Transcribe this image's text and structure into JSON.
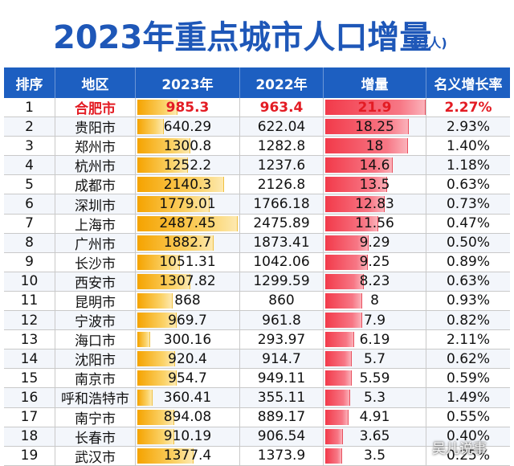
{
  "title": "2023年重点城市人口增量",
  "unit": "(万人)",
  "watermark": "吴儿说事",
  "colors": {
    "header_bg": "#1d5fc1",
    "title": "#1e57b8",
    "bar_2023": "#f5a300",
    "bar_increment": "#f23a4a",
    "highlight_text": "#e31b23"
  },
  "chart_data": {
    "type": "table",
    "columns": [
      "排序",
      "地区",
      "2023年",
      "2022年",
      "增量",
      "名义增长率"
    ],
    "rows": [
      {
        "rank": "1",
        "city": "合肥市",
        "y2023": "985.3",
        "y2022": "963.4",
        "inc": "21.9",
        "rate": "2.27%",
        "v2023": 985.3,
        "vinc": 21.9
      },
      {
        "rank": "2",
        "city": "贵阳市",
        "y2023": "640.29",
        "y2022": "622.04",
        "inc": "18.25",
        "rate": "2.93%",
        "v2023": 640.29,
        "vinc": 18.25
      },
      {
        "rank": "3",
        "city": "郑州市",
        "y2023": "1300.8",
        "y2022": "1282.8",
        "inc": "18",
        "rate": "1.40%",
        "v2023": 1300.8,
        "vinc": 18
      },
      {
        "rank": "4",
        "city": "杭州市",
        "y2023": "1252.2",
        "y2022": "1237.6",
        "inc": "14.6",
        "rate": "1.18%",
        "v2023": 1252.2,
        "vinc": 14.6
      },
      {
        "rank": "5",
        "city": "成都市",
        "y2023": "2140.3",
        "y2022": "2126.8",
        "inc": "13.5",
        "rate": "0.63%",
        "v2023": 2140.3,
        "vinc": 13.5
      },
      {
        "rank": "6",
        "city": "深圳市",
        "y2023": "1779.01",
        "y2022": "1766.18",
        "inc": "12.83",
        "rate": "0.73%",
        "v2023": 1779.01,
        "vinc": 12.83
      },
      {
        "rank": "7",
        "city": "上海市",
        "y2023": "2487.45",
        "y2022": "2475.89",
        "inc": "11.56",
        "rate": "0.47%",
        "v2023": 2487.45,
        "vinc": 11.56
      },
      {
        "rank": "8",
        "city": "广州市",
        "y2023": "1882.7",
        "y2022": "1873.41",
        "inc": "9.29",
        "rate": "0.50%",
        "v2023": 1882.7,
        "vinc": 9.29
      },
      {
        "rank": "9",
        "city": "长沙市",
        "y2023": "1051.31",
        "y2022": "1042.06",
        "inc": "9.25",
        "rate": "0.89%",
        "v2023": 1051.31,
        "vinc": 9.25
      },
      {
        "rank": "10",
        "city": "西安市",
        "y2023": "1307.82",
        "y2022": "1299.59",
        "inc": "8.23",
        "rate": "0.63%",
        "v2023": 1307.82,
        "vinc": 8.23
      },
      {
        "rank": "11",
        "city": "昆明市",
        "y2023": "868",
        "y2022": "860",
        "inc": "8",
        "rate": "0.93%",
        "v2023": 868,
        "vinc": 8
      },
      {
        "rank": "12",
        "city": "宁波市",
        "y2023": "969.7",
        "y2022": "961.8",
        "inc": "7.9",
        "rate": "0.82%",
        "v2023": 969.7,
        "vinc": 7.9
      },
      {
        "rank": "13",
        "city": "海口市",
        "y2023": "300.16",
        "y2022": "293.97",
        "inc": "6.19",
        "rate": "2.11%",
        "v2023": 300.16,
        "vinc": 6.19
      },
      {
        "rank": "14",
        "city": "沈阳市",
        "y2023": "920.4",
        "y2022": "914.7",
        "inc": "5.7",
        "rate": "0.62%",
        "v2023": 920.4,
        "vinc": 5.7
      },
      {
        "rank": "15",
        "city": "南京市",
        "y2023": "954.7",
        "y2022": "949.11",
        "inc": "5.59",
        "rate": "0.59%",
        "v2023": 954.7,
        "vinc": 5.59
      },
      {
        "rank": "16",
        "city": "呼和浩特市",
        "y2023": "360.41",
        "y2022": "355.11",
        "inc": "5.3",
        "rate": "1.49%",
        "v2023": 360.41,
        "vinc": 5.3
      },
      {
        "rank": "17",
        "city": "南宁市",
        "y2023": "894.08",
        "y2022": "889.17",
        "inc": "4.91",
        "rate": "0.55%",
        "v2023": 894.08,
        "vinc": 4.91
      },
      {
        "rank": "18",
        "city": "长春市",
        "y2023": "910.19",
        "y2022": "906.54",
        "inc": "3.65",
        "rate": "0.40%",
        "v2023": 910.19,
        "vinc": 3.65
      },
      {
        "rank": "19",
        "city": "武汉市",
        "y2023": "1377.4",
        "y2022": "1373.9",
        "inc": "3.5",
        "rate": "0.25%",
        "v2023": 1377.4,
        "vinc": 3.5
      }
    ]
  }
}
